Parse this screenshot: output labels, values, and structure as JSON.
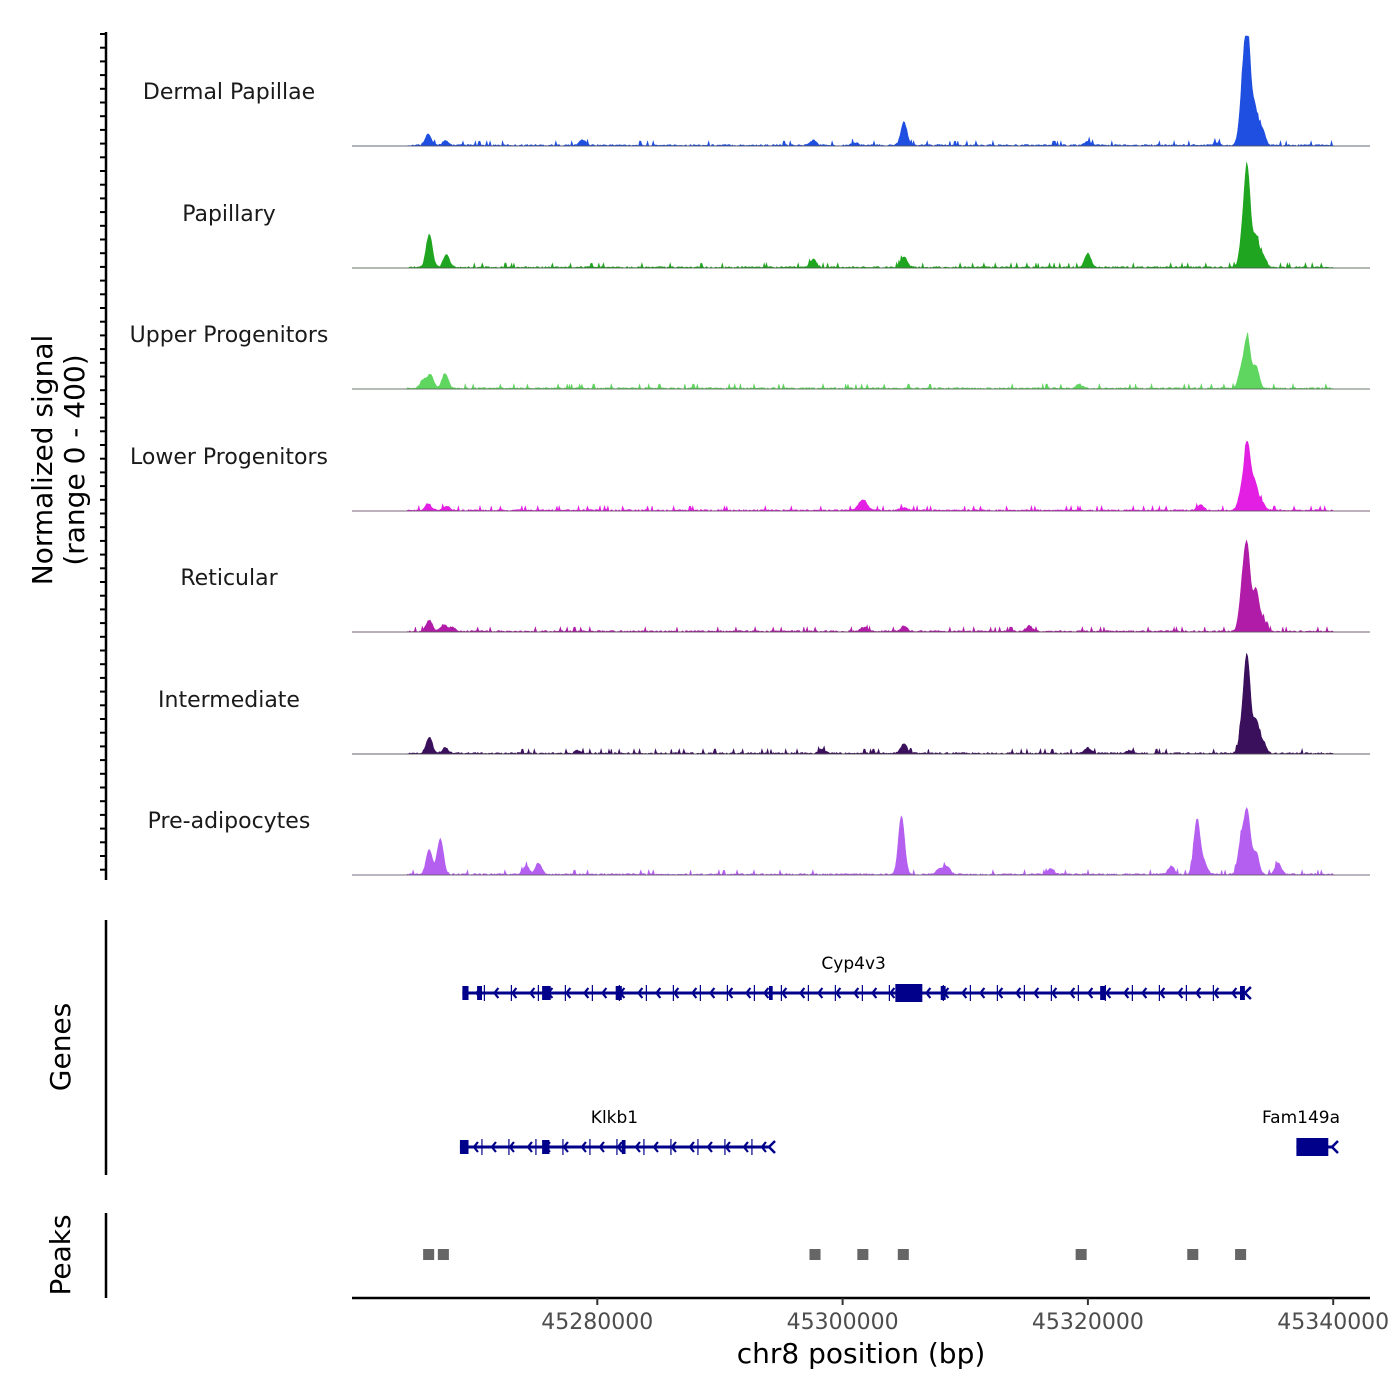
{
  "chart_data": {
    "type": "coverage_tracks",
    "chromosome": "chr8",
    "region": [
      45260000,
      45343000
    ],
    "xlabel": "chr8 position (bp)",
    "ylabel_line1": "Normalized signal",
    "ylabel_line2": "(range 0 - 400)",
    "y_range": [
      0,
      400
    ],
    "x_ticks": [
      45280000,
      45300000,
      45320000,
      45340000
    ],
    "x_tick_labels": [
      "45280000",
      "45300000",
      "45320000",
      "45340000"
    ],
    "tracks": [
      {
        "name": "Dermal Papillae",
        "color": "#1f4fe0",
        "peaks": [
          [
            45266200,
            40
          ],
          [
            45267600,
            15
          ],
          [
            45278800,
            20
          ],
          [
            45297600,
            18
          ],
          [
            45301000,
            10
          ],
          [
            45305000,
            85
          ],
          [
            45320000,
            15
          ],
          [
            45330500,
            10
          ],
          [
            45332600,
            160
          ],
          [
            45333000,
            400
          ],
          [
            45333600,
            130
          ],
          [
            45334200,
            60
          ]
        ]
      },
      {
        "name": "Papillary",
        "color": "#1fa51f",
        "peaks": [
          [
            45266300,
            120
          ],
          [
            45267700,
            45
          ],
          [
            45297600,
            30
          ],
          [
            45305000,
            40
          ],
          [
            45320000,
            50
          ],
          [
            45332600,
            90
          ],
          [
            45333000,
            340
          ],
          [
            45333700,
            110
          ],
          [
            45334300,
            40
          ]
        ]
      },
      {
        "name": "Upper Progenitors",
        "color": "#5fd65f",
        "peaks": [
          [
            45265800,
            30
          ],
          [
            45266400,
            50
          ],
          [
            45267600,
            55
          ],
          [
            45319300,
            15
          ],
          [
            45332500,
            60
          ],
          [
            45333000,
            180
          ],
          [
            45333700,
            80
          ]
        ]
      },
      {
        "name": "Lower Progenitors",
        "color": "#e21fe2",
        "peaks": [
          [
            45266200,
            25
          ],
          [
            45267700,
            15
          ],
          [
            45301400,
            20
          ],
          [
            45301800,
            30
          ],
          [
            45305000,
            10
          ],
          [
            45329200,
            20
          ],
          [
            45332500,
            60
          ],
          [
            45333000,
            240
          ],
          [
            45333600,
            100
          ],
          [
            45334200,
            30
          ]
        ]
      },
      {
        "name": "Reticular",
        "color": "#b01ca8",
        "peaks": [
          [
            45266300,
            40
          ],
          [
            45267500,
            25
          ],
          [
            45268200,
            15
          ],
          [
            45301700,
            15
          ],
          [
            45305000,
            20
          ],
          [
            45315200,
            20
          ],
          [
            45332600,
            140
          ],
          [
            45333000,
            280
          ],
          [
            45333700,
            150
          ],
          [
            45334300,
            40
          ]
        ]
      },
      {
        "name": "Intermediate",
        "color": "#3a0f5c",
        "peaks": [
          [
            45266300,
            60
          ],
          [
            45267600,
            20
          ],
          [
            45278400,
            10
          ],
          [
            45298300,
            15
          ],
          [
            45305000,
            35
          ],
          [
            45320000,
            20
          ],
          [
            45323400,
            10
          ],
          [
            45332600,
            100
          ],
          [
            45333000,
            330
          ],
          [
            45333700,
            120
          ],
          [
            45334300,
            40
          ]
        ]
      },
      {
        "name": "Pre-adipocytes",
        "color": "#b45ff0",
        "peaks": [
          [
            45266300,
            90
          ],
          [
            45267200,
            130
          ],
          [
            45274200,
            30
          ],
          [
            45275200,
            40
          ],
          [
            45304800,
            210
          ],
          [
            45307900,
            20
          ],
          [
            45308500,
            30
          ],
          [
            45317000,
            20
          ],
          [
            45326800,
            30
          ],
          [
            45328900,
            200
          ],
          [
            45329500,
            40
          ],
          [
            45332500,
            120
          ],
          [
            45333000,
            220
          ],
          [
            45333700,
            80
          ],
          [
            45335500,
            40
          ]
        ]
      }
    ],
    "genes": [
      {
        "name": "Cyp4v3",
        "strand": "-",
        "start": 45269000,
        "end": 45332800,
        "exons": [
          [
            45269000,
            45269500
          ],
          [
            45270200,
            45270600
          ],
          [
            45275500,
            45276200
          ],
          [
            45281500,
            45282000
          ],
          [
            45294000,
            45294300
          ],
          [
            45304300,
            45306500
          ],
          [
            45308000,
            45308400
          ],
          [
            45321000,
            45321400
          ],
          [
            45332400,
            45332800
          ]
        ]
      },
      {
        "name": "Klkb1",
        "strand": "-",
        "start": 45268800,
        "end": 45294000,
        "exons": [
          [
            45268800,
            45269500
          ],
          [
            45275500,
            45276100
          ],
          [
            45282000,
            45282300
          ]
        ]
      },
      {
        "name": "Fam149a",
        "strand": "-",
        "start": 45337000,
        "end": 45339900,
        "exons": [
          [
            45337000,
            45339600
          ]
        ]
      }
    ],
    "peaks": [
      [
        45265800,
        45266700
      ],
      [
        45267000,
        45267900
      ],
      [
        45297300,
        45298200
      ],
      [
        45301200,
        45302100
      ],
      [
        45304500,
        45305400
      ],
      [
        45319000,
        45319900
      ],
      [
        45328100,
        45329000
      ],
      [
        45332000,
        45332900
      ]
    ],
    "panel_labels": {
      "genes": "Genes",
      "peaks": "Peaks"
    }
  }
}
